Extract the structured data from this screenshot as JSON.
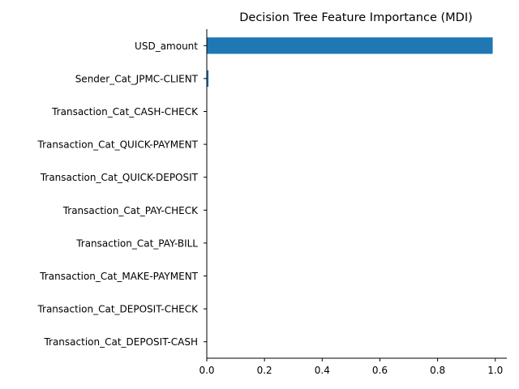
{
  "chart_data": {
    "type": "bar",
    "orientation": "horizontal",
    "title": "Decision Tree Feature Importance (MDI)",
    "xlabel": "",
    "ylabel": "",
    "categories": [
      "USD_amount",
      "Sender_Cat_JPMC-CLIENT",
      "Transaction_Cat_CASH-CHECK",
      "Transaction_Cat_QUICK-PAYMENT",
      "Transaction_Cat_QUICK-DEPOSIT",
      "Transaction_Cat_PAY-CHECK",
      "Transaction_Cat_PAY-BILL",
      "Transaction_Cat_MAKE-PAYMENT",
      "Transaction_Cat_DEPOSIT-CHECK",
      "Transaction_Cat_DEPOSIT-CASH"
    ],
    "values": [
      0.991,
      0.006,
      0.0008,
      0.0006,
      0.0005,
      0.0004,
      0.0003,
      0.0003,
      0.0002,
      0.0001
    ],
    "xlim": [
      0,
      1.04
    ],
    "xticks": [
      0.0,
      0.2,
      0.4,
      0.6,
      0.8,
      1.0
    ],
    "xtick_labels": [
      "0.0",
      "0.2",
      "0.4",
      "0.6",
      "0.8",
      "1.0"
    ],
    "bar_color": "#1f77b4",
    "grid": false,
    "spines": [
      "left",
      "bottom",
      "top-none",
      "right-none"
    ]
  }
}
